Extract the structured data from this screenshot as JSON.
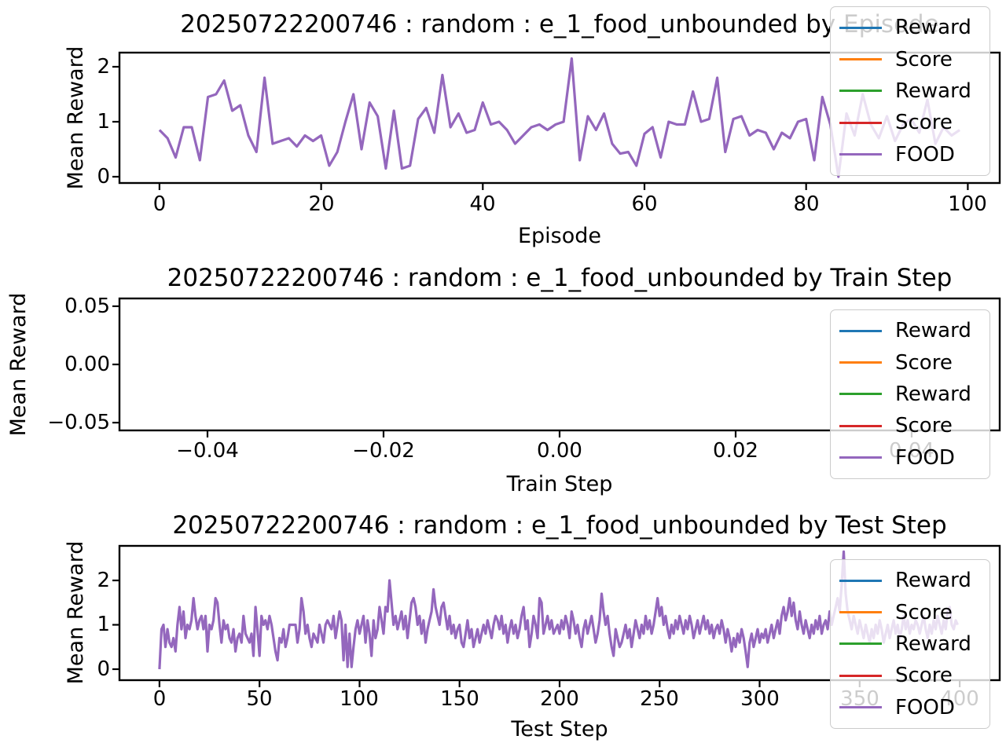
{
  "figure": {
    "background": "#ffffff"
  },
  "chart_data": [
    {
      "type": "line",
      "title": "20250722200746 : random : e_1_food_unbounded by Episode",
      "xlabel": "Episode",
      "ylabel": "Mean Reward",
      "xlim": [
        -4.95,
        103.95
      ],
      "ylim": [
        -0.114,
        2.257
      ],
      "xtick_values": [
        0,
        20,
        40,
        60,
        80,
        100
      ],
      "xtick_labels": [
        "0",
        "20",
        "40",
        "60",
        "80",
        "100"
      ],
      "ytick_values": [
        0,
        1,
        2
      ],
      "ytick_labels": [
        "0",
        "1",
        "2"
      ],
      "grid": false,
      "legend_location": "upper right",
      "legend": [
        {
          "label": "Reward",
          "color": "#1f77b4"
        },
        {
          "label": "Score",
          "color": "#ff7f0e"
        },
        {
          "label": "Reward",
          "color": "#2ca02c"
        },
        {
          "label": "Score",
          "color": "#d62728"
        },
        {
          "label": "FOOD",
          "color": "#9467bd"
        }
      ],
      "series": [
        {
          "name": "FOOD",
          "color": "#9467bd",
          "x_start": 0,
          "x_step": 1,
          "values": [
            0.85,
            0.7,
            0.35,
            0.9,
            0.9,
            0.3,
            1.45,
            1.5,
            1.75,
            1.2,
            1.3,
            0.75,
            0.45,
            1.8,
            0.6,
            0.65,
            0.7,
            0.55,
            0.75,
            0.65,
            0.75,
            0.2,
            0.45,
            1.0,
            1.5,
            0.5,
            1.35,
            1.1,
            0.15,
            1.2,
            0.15,
            0.2,
            1.05,
            1.25,
            0.8,
            1.85,
            0.9,
            1.15,
            0.8,
            0.85,
            1.35,
            0.95,
            1.0,
            0.85,
            0.6,
            0.75,
            0.9,
            0.95,
            0.85,
            0.95,
            1.0,
            2.15,
            0.3,
            1.1,
            0.85,
            1.15,
            0.6,
            0.42,
            0.45,
            0.2,
            0.78,
            0.9,
            0.35,
            1.0,
            0.95,
            0.95,
            1.55,
            1.0,
            1.05,
            1.8,
            0.45,
            1.05,
            1.1,
            0.75,
            0.85,
            0.8,
            0.5,
            0.8,
            0.7,
            1.0,
            1.05,
            0.3,
            1.45,
            0.95,
            0.0,
            1.15,
            0.75,
            1.5,
            0.95,
            0.7,
            1.1,
            0.65,
            0.95,
            1.05,
            0.8,
            1.4,
            0.6,
            0.9,
            0.75,
            0.85
          ]
        }
      ]
    },
    {
      "type": "line",
      "title": "20250722200746 : random : e_1_food_unbounded by Train Step",
      "xlabel": "Train Step",
      "ylabel": "Mean Reward",
      "xlim": [
        -0.05,
        0.05
      ],
      "ylim": [
        -0.0567,
        0.0567
      ],
      "xtick_values": [
        -0.04,
        -0.02,
        0.0,
        0.02,
        0.04
      ],
      "xtick_labels": [
        "−0.04",
        "−0.02",
        "0.00",
        "0.02",
        "0.04"
      ],
      "ytick_values": [
        -0.05,
        0.0,
        0.05
      ],
      "ytick_labels": [
        "−0.05",
        "0.00",
        "0.05"
      ],
      "grid": false,
      "legend_location": "right",
      "legend": [
        {
          "label": "Reward",
          "color": "#1f77b4"
        },
        {
          "label": "Score",
          "color": "#ff7f0e"
        },
        {
          "label": "Reward",
          "color": "#2ca02c"
        },
        {
          "label": "Score",
          "color": "#d62728"
        },
        {
          "label": "FOOD",
          "color": "#9467bd"
        }
      ],
      "series": []
    },
    {
      "type": "line",
      "title": "20250722200746 : random : e_1_food_unbounded by Test Step",
      "xlabel": "Test Step",
      "ylabel": "Mean Reward",
      "xlim": [
        -20,
        420
      ],
      "ylim": [
        -0.248,
        2.779
      ],
      "xtick_values": [
        0,
        50,
        100,
        150,
        200,
        250,
        300,
        350,
        400
      ],
      "xtick_labels": [
        "0",
        "50",
        "100",
        "150",
        "200",
        "250",
        "300",
        "350",
        "400"
      ],
      "ytick_values": [
        0,
        1,
        2
      ],
      "ytick_labels": [
        "0",
        "1",
        "2"
      ],
      "grid": false,
      "legend_location": "right",
      "legend": [
        {
          "label": "Reward",
          "color": "#1f77b4"
        },
        {
          "label": "Score",
          "color": "#ff7f0e"
        },
        {
          "label": "Reward",
          "color": "#2ca02c"
        },
        {
          "label": "Score",
          "color": "#d62728"
        },
        {
          "label": "FOOD",
          "color": "#9467bd"
        }
      ],
      "series": [
        {
          "name": "FOOD",
          "color": "#9467bd",
          "x_start": 0,
          "x_step": 1,
          "values": [
            0.0,
            0.9,
            1.0,
            0.5,
            0.9,
            0.6,
            0.5,
            0.7,
            0.4,
            1.0,
            1.4,
            0.9,
            1.3,
            0.7,
            1.0,
            0.9,
            1.1,
            1.6,
            1.2,
            0.9,
            1.1,
            1.2,
            0.9,
            1.2,
            0.4,
            1.0,
            0.9,
            1.1,
            1.6,
            1.5,
            1.0,
            0.6,
            1.1,
            0.9,
            1.0,
            0.7,
            0.6,
            0.9,
            0.4,
            0.7,
            0.8,
            0.6,
            1.2,
            0.8,
            0.7,
            0.6,
            0.8,
            0.3,
            1.4,
            0.9,
            0.3,
            1.2,
            1.0,
            1.1,
            0.9,
            1.2,
            1.0,
            0.7,
            0.4,
            0.2,
            0.7,
            0.6,
            0.9,
            0.5,
            0.7,
            1.0,
            1.0,
            1.0,
            1.0,
            0.6,
            0.9,
            1.6,
            1.3,
            0.8,
            1.0,
            0.7,
            0.5,
            0.8,
            0.7,
            0.6,
            1.0,
            0.8,
            0.6,
            1.0,
            1.1,
            1.0,
            0.9,
            1.2,
            0.7,
            1.0,
            1.3,
            1.1,
            0.2,
            1.0,
            0.05,
            0.8,
            0.05,
            0.5,
            0.9,
            1.1,
            0.8,
            1.0,
            1.2,
            0.6,
            1.1,
            0.8,
            0.3,
            1.1,
            0.7,
            0.9,
            1.4,
            1.1,
            0.8,
            1.4,
            1.3,
            2.0,
            1.5,
            1.0,
            1.2,
            0.9,
            1.1,
            1.3,
            0.9,
            1.2,
            0.7,
            1.1,
            1.5,
            1.6,
            1.4,
            1.0,
            1.2,
            0.8,
            1.1,
            0.6,
            0.9,
            1.1,
            1.3,
            1.8,
            1.4,
            1.2,
            1.0,
            1.4,
            1.5,
            1.2,
            0.9,
            1.2,
            0.8,
            1.0,
            0.7,
            0.9,
            1.0,
            0.6,
            0.5,
            0.8,
            1.1,
            0.7,
            0.9,
            0.5,
            0.7,
            0.9,
            0.6,
            0.8,
            1.0,
            0.8,
            1.1,
            0.9,
            0.7,
            1.0,
            1.2,
            1.1,
            0.9,
            1.2,
            0.8,
            1.0,
            0.6,
            0.9,
            1.1,
            0.8,
            1.0,
            0.7,
            0.9,
            1.2,
            1.4,
            0.9,
            1.1,
            0.5,
            0.8,
            1.2,
            1.0,
            0.7,
            1.6,
            1.5,
            0.8,
            1.0,
            1.2,
            0.9,
            1.1,
            0.8,
            0.9,
            1.0,
            0.8,
            1.1,
            0.9,
            1.2,
            1.0,
            0.7,
            1.3,
            1.1,
            0.8,
            1.0,
            0.7,
            0.5,
            0.9,
            1.1,
            0.8,
            1.0,
            1.2,
            0.9,
            0.6,
            0.8,
            1.1,
            1.7,
            1.3,
            1.0,
            1.2,
            0.8,
            0.5,
            0.3,
            0.9,
            0.7,
            0.5,
            0.6,
            0.8,
            1.0,
            0.7,
            0.9,
            0.5,
            0.8,
            1.1,
            0.9,
            0.7,
            1.0,
            0.8,
            1.2,
            0.9,
            1.1,
            0.8,
            1.0,
            1.3,
            1.6,
            1.2,
            1.4,
            1.0,
            1.2,
            0.9,
            0.7,
            1.0,
            0.8,
            1.1,
            0.9,
            1.2,
            1.0,
            0.8,
            1.1,
            0.9,
            1.2,
            1.0,
            0.7,
            0.9,
            1.1,
            0.8,
            1.0,
            1.2,
            0.9,
            1.1,
            0.8,
            1.0,
            0.7,
            0.9,
            1.0,
            0.8,
            1.1,
            0.9,
            0.6,
            0.9,
            0.7,
            0.4,
            0.7,
            0.5,
            0.8,
            0.6,
            0.9,
            0.7,
            0.4,
            0.05,
            0.6,
            0.8,
            0.5,
            0.7,
            0.9,
            0.6,
            0.8,
            0.7,
            0.9,
            0.6,
            0.8,
            1.0,
            0.7,
            0.9,
            1.1,
            0.8,
            1.2,
            1.4,
            1.1,
            1.3,
            1.6,
            1.2,
            1.5,
            1.1,
            0.9,
            1.3,
            1.0,
            0.8,
            1.1,
            0.9,
            0.7,
            1.0,
            0.8,
            1.1,
            0.9,
            1.2,
            0.8,
            1.0,
            1.1,
            0.9,
            1.3,
            1.0,
            1.2,
            1.4,
            1.6,
            1.3,
            1.9,
            2.65,
            1.7,
            1.3,
            1.1,
            0.9,
            1.2,
            1.0,
            0.8,
            1.1,
            0.9,
            0.7,
            1.0,
            0.8,
            0.6,
            0.9,
            0.7,
            1.0,
            0.8,
            1.1,
            0.9,
            0.6,
            0.8,
            1.0,
            0.7,
            0.9,
            1.1,
            0.8,
            1.0,
            0.7,
            0.9,
            1.2,
            0.9,
            1.1,
            0.8,
            1.0,
            0.9,
            1.1,
            1.0,
            0.8,
            1.0,
            1.2,
            0.9,
            0.7,
            1.0,
            0.8,
            1.1,
            0.9,
            1.2,
            1.0,
            0.8,
            1.1,
            0.9,
            1.3,
            1.4,
            1.0,
            0.9,
            1.1,
            1.0
          ]
        }
      ]
    }
  ]
}
